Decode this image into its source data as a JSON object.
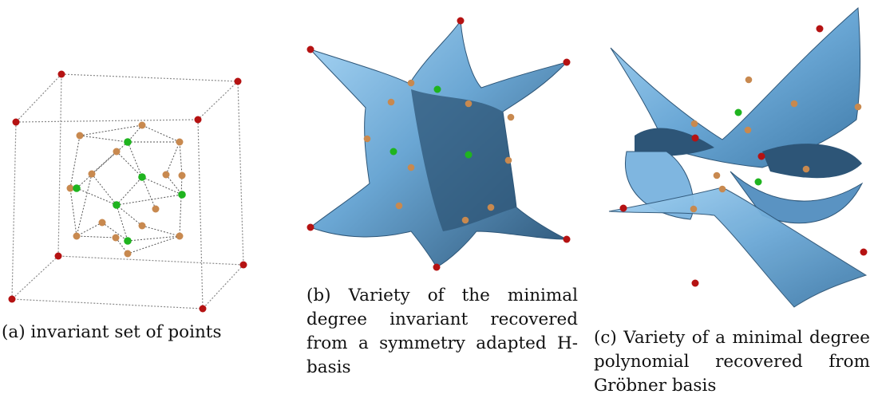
{
  "figures": [
    {
      "id": "a",
      "caption": "(a) invariant set of points"
    },
    {
      "id": "b",
      "caption": "(b) Variety of the minimal degree invariant recovered from a symmetry adapted H-basis"
    },
    {
      "id": "c",
      "caption": "(c) Variety of a minimal degree polynomial recovered from Gröbner basis"
    }
  ],
  "colors": {
    "outer_points": "#b51212",
    "middle_points": "#c8894f",
    "inner_points": "#1fb41f",
    "surface_light": "#8ec6ee",
    "surface_dark": "#2d5577"
  }
}
